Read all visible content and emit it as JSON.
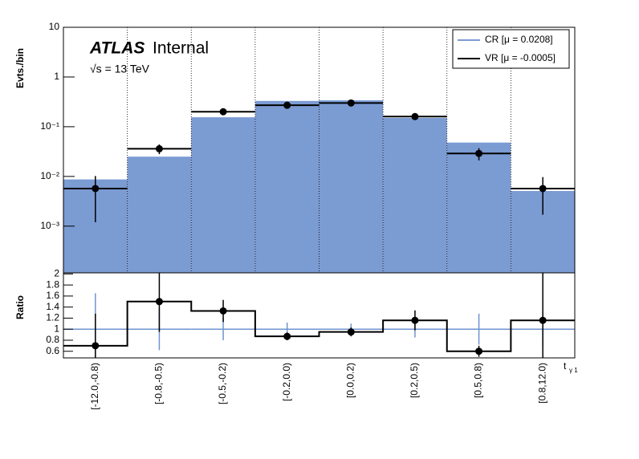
{
  "chart_data": [
    {
      "type": "histogram",
      "ylabel": "Evts./bin",
      "experiment": "ATLAS",
      "status": "Internal",
      "energy": "√s = 13 TeV",
      "categories": [
        "[-12.0,-0.8)",
        "[-0.8,-0.5)",
        "[-0.5,-0.2)",
        "[-0.2,0.0)",
        "[0.0,0.2)",
        "[0.2,0.5)",
        "[0.5,0.8)",
        "[0.8,12.0)"
      ],
      "log_y": true,
      "ylim": [
        0.000115,
        10
      ],
      "yticks": [
        {
          "value": 0.001,
          "label": "10⁻³"
        },
        {
          "value": 0.01,
          "label": "10⁻²"
        },
        {
          "value": 0.1,
          "label": "10⁻¹"
        },
        1,
        10
      ],
      "vertical_grid": true,
      "legend": "top-right",
      "series": [
        {
          "name": "CR [μ = 0.0208]",
          "color": "#7b9bd3",
          "values": [
            0.0087,
            0.025,
            0.155,
            0.33,
            0.34,
            0.15,
            0.048,
            0.0051
          ]
        },
        {
          "name": "VR [μ = -0.0005]",
          "color": "#000000",
          "values": [
            0.0057,
            0.036,
            0.2,
            0.27,
            0.3,
            0.16,
            0.029,
            0.0057
          ],
          "errors": [
            0.0045,
            0.008,
            0.02,
            0.02,
            0.02,
            0.015,
            0.008,
            0.004
          ]
        }
      ]
    },
    {
      "type": "ratio",
      "ylabel": "Ratio",
      "xlabel": "t",
      "xlabel_sub": "γ 1",
      "ylim": [
        0.48,
        2.02
      ],
      "yticks": [
        0.6,
        0.8,
        1,
        1.2,
        1.4,
        1.6,
        1.8,
        2
      ],
      "series": [
        {
          "color": "#6f93cf",
          "values": [
            1,
            1,
            1,
            1,
            1,
            1,
            1,
            1
          ],
          "errors": [
            0.65,
            0.38,
            0.2,
            0.12,
            0.1,
            0.15,
            0.28,
            0.3
          ]
        },
        {
          "color": "#000000",
          "values": [
            0.7,
            1.5,
            1.33,
            0.87,
            0.95,
            1.16,
            0.6,
            1.16
          ],
          "errors": [
            0.58,
            0.55,
            0.2,
            0.07,
            0.08,
            0.18,
            0.1,
            0.9
          ]
        }
      ]
    }
  ]
}
